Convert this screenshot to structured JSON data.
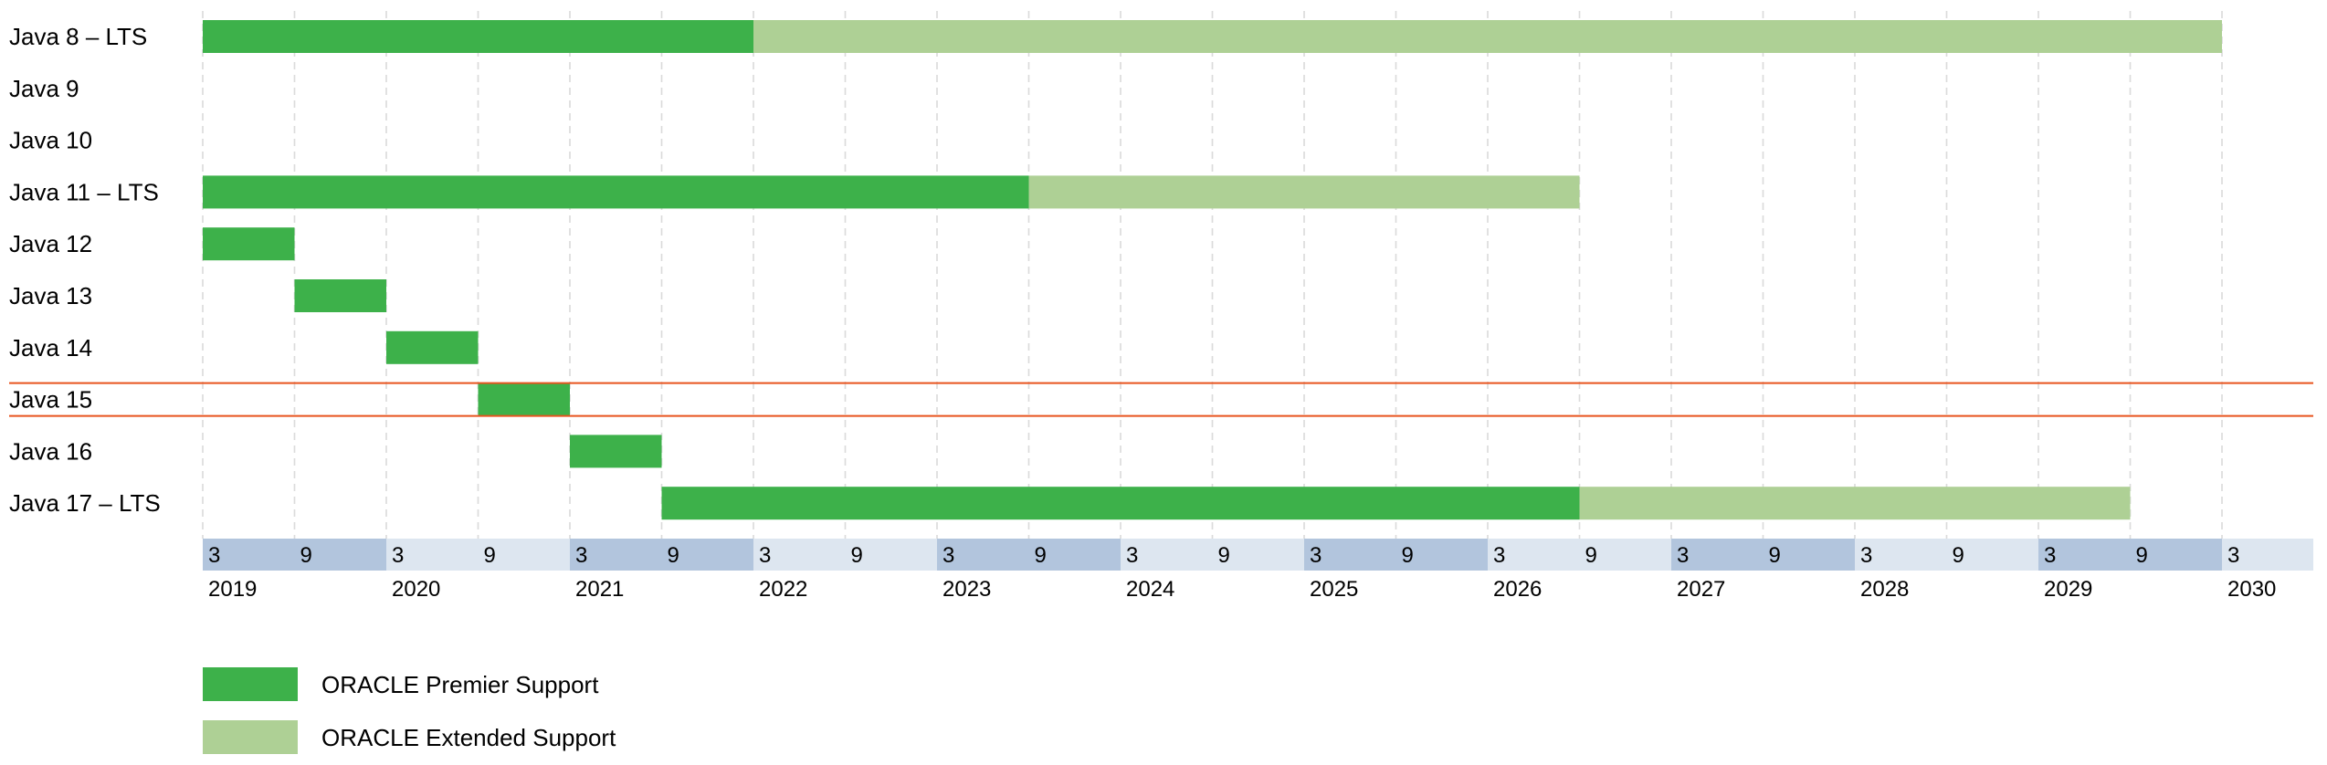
{
  "chart_data": {
    "type": "gantt",
    "title": "",
    "colors": {
      "premier": "#3db14a",
      "extended": "#aed095",
      "highlight": "#e8541f",
      "axis_dark": "#b2c5dd",
      "axis_light": "#dde6f0",
      "gridline": "#c8c8c8"
    },
    "x_range": [
      "2019-03",
      "2030-09"
    ],
    "highlight_row": "Java 15",
    "rows": [
      {
        "label": "Java 8 – LTS",
        "premier": [
          "2019-03",
          "2022-03"
        ],
        "extended": [
          "2022-03",
          "2030-03"
        ]
      },
      {
        "label": "Java 9",
        "premier": null,
        "extended": null
      },
      {
        "label": "Java 10",
        "premier": null,
        "extended": null
      },
      {
        "label": "Java 11 – LTS",
        "premier": [
          "2019-03",
          "2023-09"
        ],
        "extended": [
          "2023-09",
          "2026-09"
        ]
      },
      {
        "label": "Java 12",
        "premier": [
          "2019-03",
          "2019-09"
        ],
        "extended": null
      },
      {
        "label": "Java 13",
        "premier": [
          "2019-09",
          "2020-03"
        ],
        "extended": null
      },
      {
        "label": "Java 14",
        "premier": [
          "2020-03",
          "2020-09"
        ],
        "extended": null
      },
      {
        "label": "Java 15",
        "premier": [
          "2020-09",
          "2021-03"
        ],
        "extended": null
      },
      {
        "label": "Java 16",
        "premier": [
          "2021-03",
          "2021-09"
        ],
        "extended": null
      },
      {
        "label": "Java 17 – LTS",
        "premier": [
          "2021-09",
          "2026-09"
        ],
        "extended": [
          "2026-09",
          "2029-09"
        ]
      }
    ],
    "month_ticks": [
      "3",
      "9",
      "3",
      "9",
      "3",
      "9",
      "3",
      "9",
      "3",
      "9",
      "3",
      "9",
      "3",
      "9",
      "3",
      "9",
      "3",
      "9",
      "3",
      "9",
      "3",
      "9",
      "3"
    ],
    "year_ticks": [
      "2019",
      "2020",
      "2021",
      "2022",
      "2023",
      "2024",
      "2025",
      "2026",
      "2027",
      "2028",
      "2029",
      "2030"
    ],
    "legend": [
      {
        "key": "premier",
        "label": "ORACLE Premier Support"
      },
      {
        "key": "extended",
        "label": "ORACLE Extended Support"
      }
    ]
  }
}
